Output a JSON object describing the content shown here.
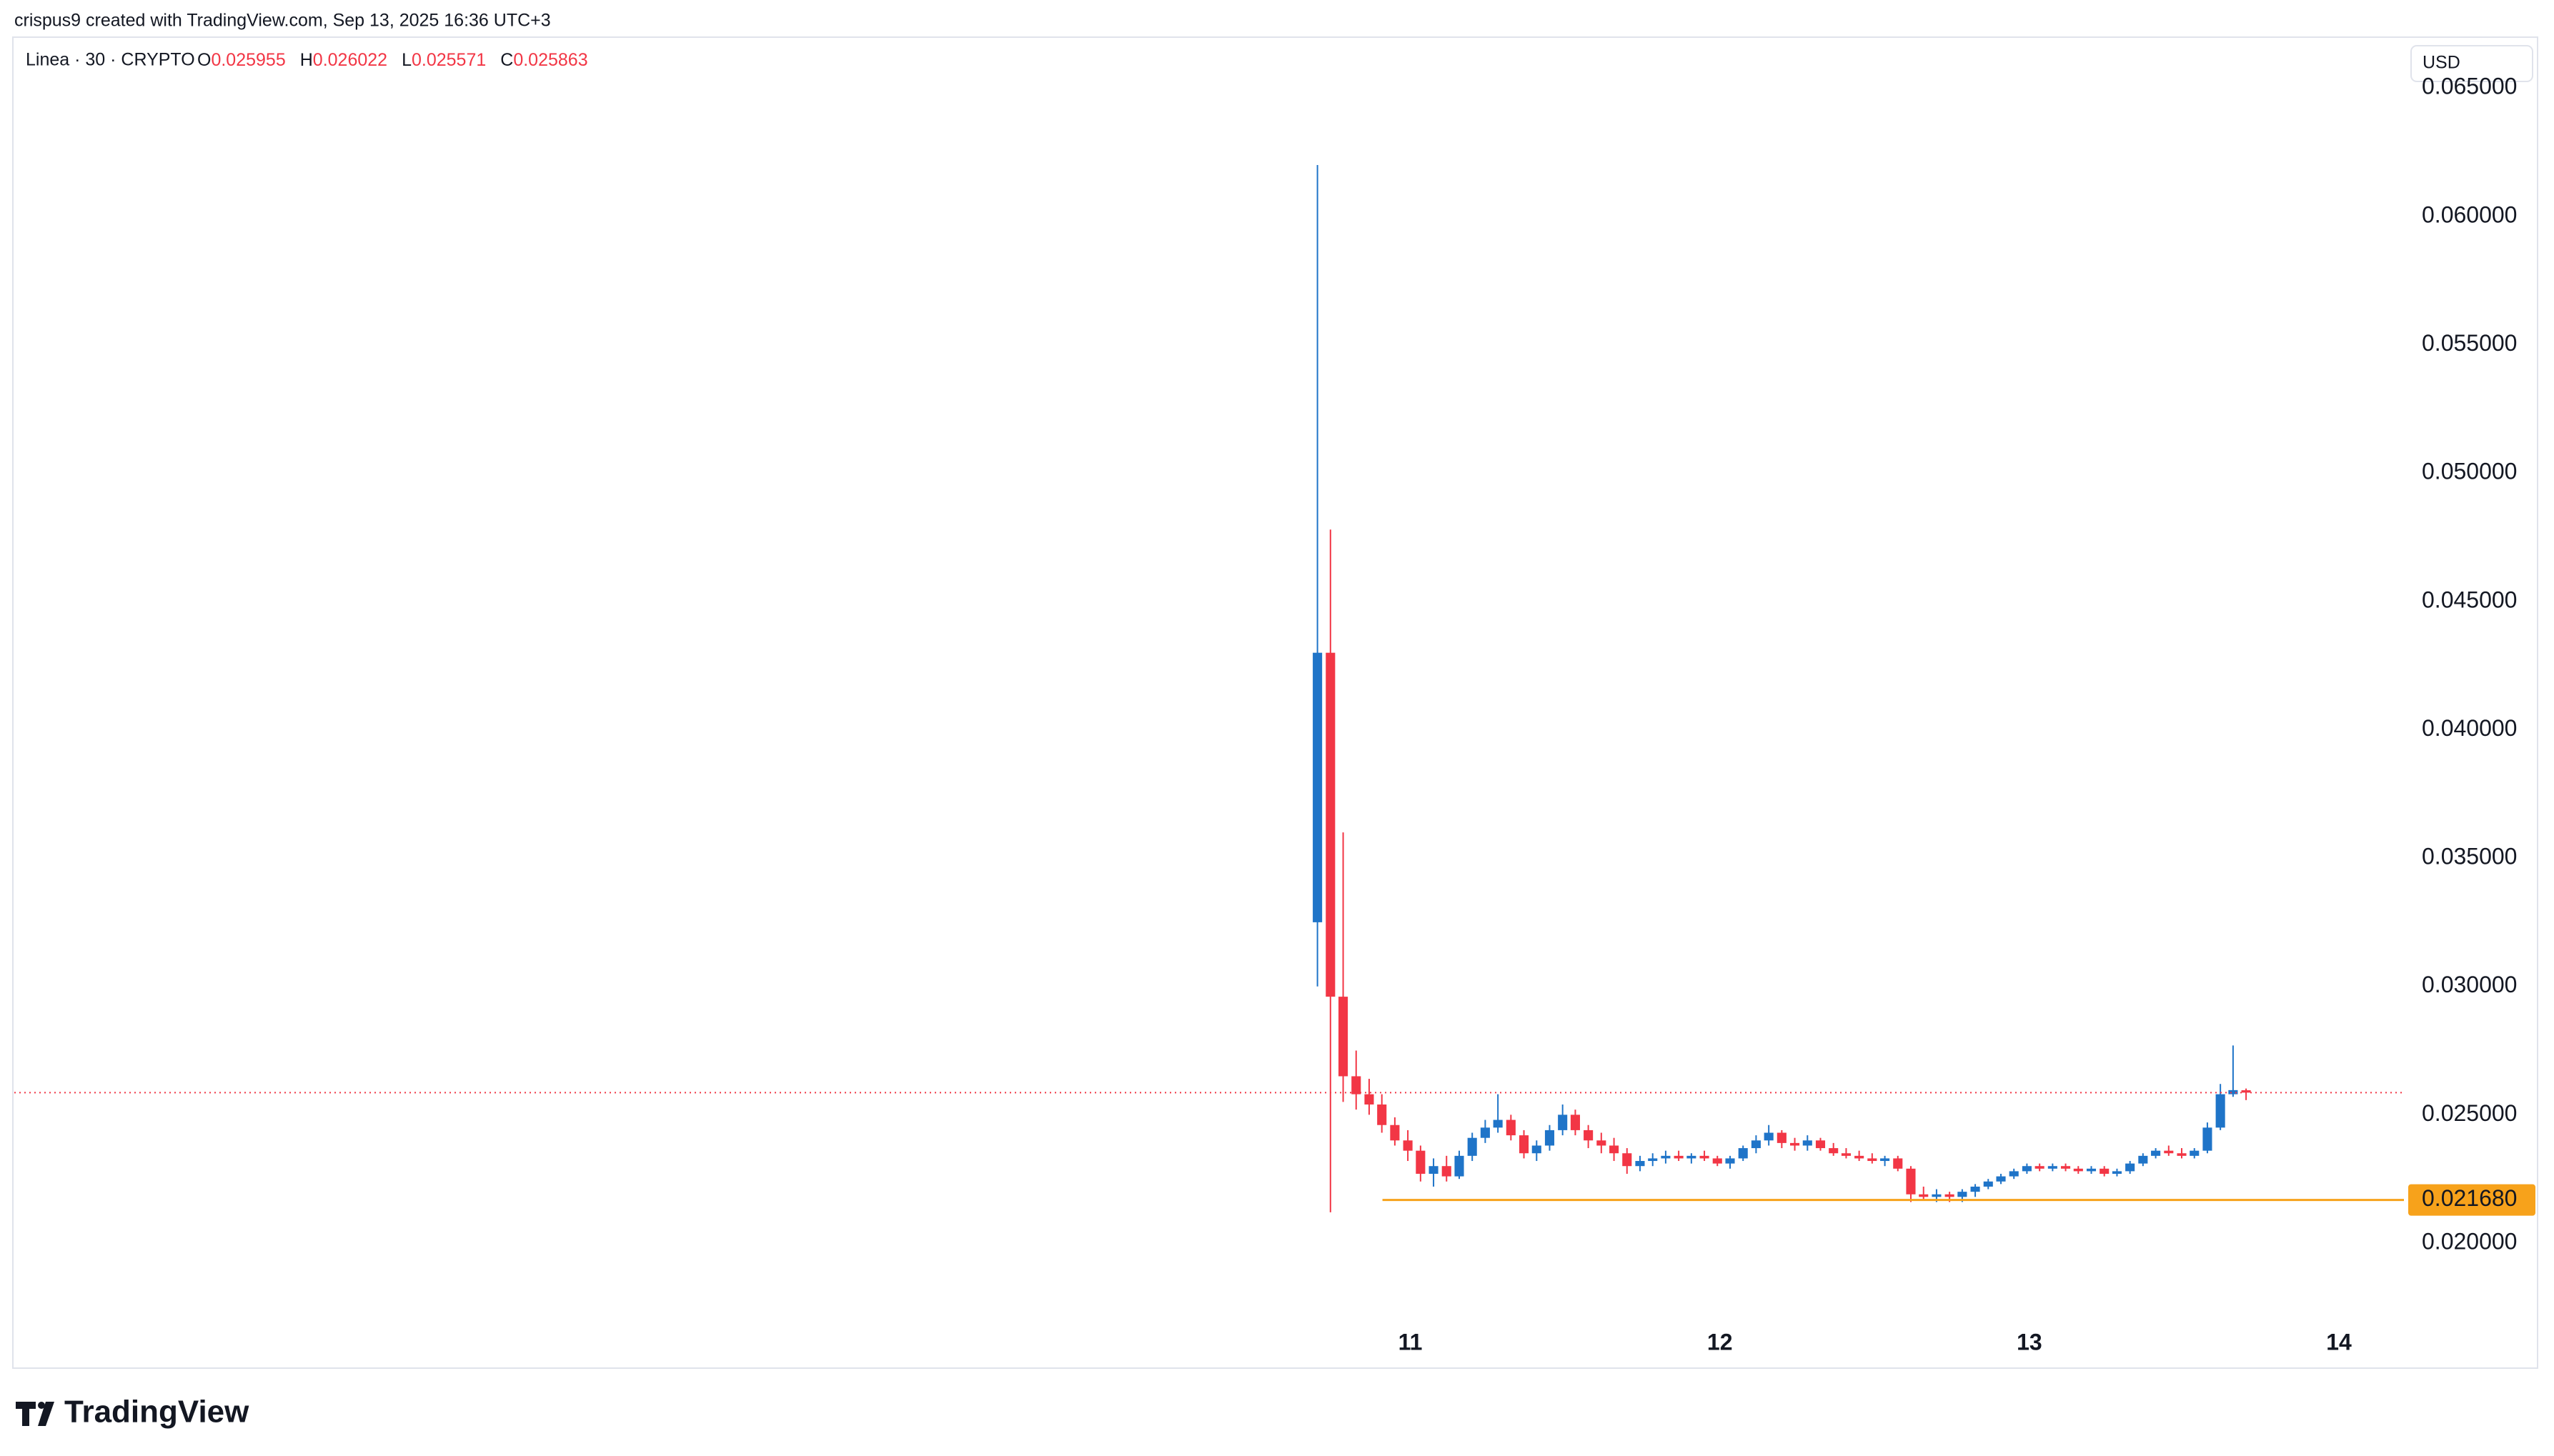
{
  "header": "crispus9 created with TradingView.com, Sep 13, 2025 16:36 UTC+3",
  "brand": "TradingView",
  "chart_data": {
    "type": "candlestick",
    "symbol": "Linea · 30 · CRYPTO",
    "legend_labels": [
      "O",
      "H",
      "L",
      "C"
    ],
    "currency": "USD",
    "up_color": "#1f74c8",
    "down_color": "#f23645",
    "x": [
      10.7,
      10.742,
      10.783,
      10.825,
      10.867,
      10.908,
      10.95,
      10.992,
      11.033,
      11.075,
      11.117,
      11.158,
      11.2,
      11.242,
      11.283,
      11.325,
      11.367,
      11.408,
      11.45,
      11.492,
      11.533,
      11.575,
      11.617,
      11.658,
      11.7,
      11.742,
      11.783,
      11.825,
      11.867,
      11.908,
      11.95,
      11.992,
      12.033,
      12.075,
      12.117,
      12.158,
      12.2,
      12.242,
      12.283,
      12.325,
      12.367,
      12.408,
      12.45,
      12.492,
      12.533,
      12.575,
      12.617,
      12.658,
      12.7,
      12.742,
      12.783,
      12.825,
      12.867,
      12.908,
      12.95,
      12.992,
      13.033,
      13.075,
      13.117,
      13.158,
      13.2,
      13.242,
      13.283,
      13.325,
      13.367,
      13.408,
      13.45,
      13.492,
      13.533,
      13.575,
      13.617,
      13.658,
      13.7
    ],
    "open": [
      0.0325,
      0.043,
      0.0296,
      0.0265,
      0.0258,
      0.0254,
      0.0246,
      0.024,
      0.0236,
      0.0227,
      0.023,
      0.0226,
      0.0234,
      0.0241,
      0.0245,
      0.0248,
      0.0242,
      0.0235,
      0.0238,
      0.0244,
      0.025,
      0.0244,
      0.024,
      0.0238,
      0.0235,
      0.023,
      0.0232,
      0.0233,
      0.0234,
      0.0233,
      0.0234,
      0.0233,
      0.0231,
      0.0233,
      0.0237,
      0.024,
      0.0243,
      0.0239,
      0.0238,
      0.024,
      0.0237,
      0.0235,
      0.0234,
      0.0233,
      0.0232,
      0.0233,
      0.0229,
      0.0219,
      0.0218,
      0.0219,
      0.0218,
      0.022,
      0.0222,
      0.0224,
      0.0226,
      0.0228,
      0.023,
      0.0229,
      0.023,
      0.0229,
      0.0228,
      0.0229,
      0.0227,
      0.0228,
      0.0231,
      0.0234,
      0.0236,
      0.0235,
      0.0234,
      0.0236,
      0.0245,
      0.0258,
      0.025955
    ],
    "high": [
      0.062,
      0.0478,
      0.036,
      0.0275,
      0.0264,
      0.0258,
      0.0249,
      0.0244,
      0.0238,
      0.0233,
      0.0234,
      0.0236,
      0.0243,
      0.0248,
      0.0258,
      0.025,
      0.0244,
      0.024,
      0.0246,
      0.0254,
      0.0252,
      0.0246,
      0.0243,
      0.0241,
      0.0237,
      0.0234,
      0.0235,
      0.0236,
      0.0236,
      0.0235,
      0.0236,
      0.0234,
      0.0234,
      0.0238,
      0.0242,
      0.0246,
      0.0244,
      0.0241,
      0.0242,
      0.0241,
      0.0239,
      0.0237,
      0.0236,
      0.0235,
      0.0234,
      0.0234,
      0.023,
      0.0222,
      0.0221,
      0.022,
      0.0221,
      0.0223,
      0.0225,
      0.0227,
      0.0229,
      0.0231,
      0.0231,
      0.0231,
      0.0231,
      0.023,
      0.023,
      0.023,
      0.0229,
      0.0232,
      0.0235,
      0.0237,
      0.0238,
      0.0237,
      0.0237,
      0.0247,
      0.0262,
      0.0277,
      0.026022
    ],
    "low": [
      0.03,
      0.0212,
      0.0255,
      0.0252,
      0.025,
      0.0243,
      0.0238,
      0.0232,
      0.0224,
      0.0222,
      0.0224,
      0.0225,
      0.0232,
      0.0239,
      0.0243,
      0.024,
      0.0233,
      0.0232,
      0.0236,
      0.0242,
      0.0242,
      0.0237,
      0.0235,
      0.0232,
      0.0227,
      0.0228,
      0.023,
      0.0231,
      0.0232,
      0.0231,
      0.0232,
      0.023,
      0.0229,
      0.0232,
      0.0235,
      0.0238,
      0.0237,
      0.0236,
      0.0236,
      0.0236,
      0.0234,
      0.0233,
      0.0232,
      0.0231,
      0.023,
      0.0228,
      0.0216,
      0.0217,
      0.0216,
      0.0216,
      0.0216,
      0.0218,
      0.0221,
      0.0223,
      0.0225,
      0.0227,
      0.0228,
      0.0228,
      0.0228,
      0.0227,
      0.0227,
      0.0226,
      0.0226,
      0.0227,
      0.023,
      0.0233,
      0.0234,
      0.0233,
      0.0233,
      0.0235,
      0.0244,
      0.0257,
      0.025571
    ],
    "close": [
      0.043,
      0.0296,
      0.0265,
      0.0258,
      0.0254,
      0.0246,
      0.024,
      0.0236,
      0.0227,
      0.023,
      0.0226,
      0.0234,
      0.0241,
      0.0245,
      0.0248,
      0.0242,
      0.0235,
      0.0238,
      0.0244,
      0.025,
      0.0244,
      0.024,
      0.0238,
      0.0235,
      0.023,
      0.0232,
      0.0233,
      0.0234,
      0.0233,
      0.0234,
      0.0233,
      0.0231,
      0.0233,
      0.0237,
      0.024,
      0.0243,
      0.0239,
      0.0238,
      0.024,
      0.0237,
      0.0235,
      0.0234,
      0.0233,
      0.0232,
      0.0233,
      0.0229,
      0.0219,
      0.0218,
      0.0219,
      0.0218,
      0.022,
      0.0222,
      0.0224,
      0.0226,
      0.0228,
      0.023,
      0.0229,
      0.023,
      0.0229,
      0.0228,
      0.0229,
      0.0227,
      0.0228,
      0.0231,
      0.0234,
      0.0236,
      0.0235,
      0.0234,
      0.0236,
      0.0245,
      0.0258,
      0.02596,
      0.025863
    ],
    "xlim": [
      6.55,
      14.21
    ],
    "xticks": [
      11,
      12,
      13,
      14
    ],
    "ylim": [
      0.0173,
      0.0669
    ],
    "yticks": [
      {
        "value": 0.02,
        "label": "0.020000"
      },
      {
        "value": 0.025,
        "label": "0.025000"
      },
      {
        "value": 0.03,
        "label": "0.030000"
      },
      {
        "value": 0.035,
        "label": "0.035000"
      },
      {
        "value": 0.04,
        "label": "0.040000"
      },
      {
        "value": 0.045,
        "label": "0.045000"
      },
      {
        "value": 0.05,
        "label": "0.050000"
      },
      {
        "value": 0.055,
        "label": "0.055000"
      },
      {
        "value": 0.06,
        "label": "0.060000"
      },
      {
        "value": 0.065,
        "label": "0.065000"
      }
    ],
    "support": {
      "value": 0.02168,
      "label": "0.021680",
      "x_start": 10.91,
      "color": "#f7a21b"
    }
  }
}
